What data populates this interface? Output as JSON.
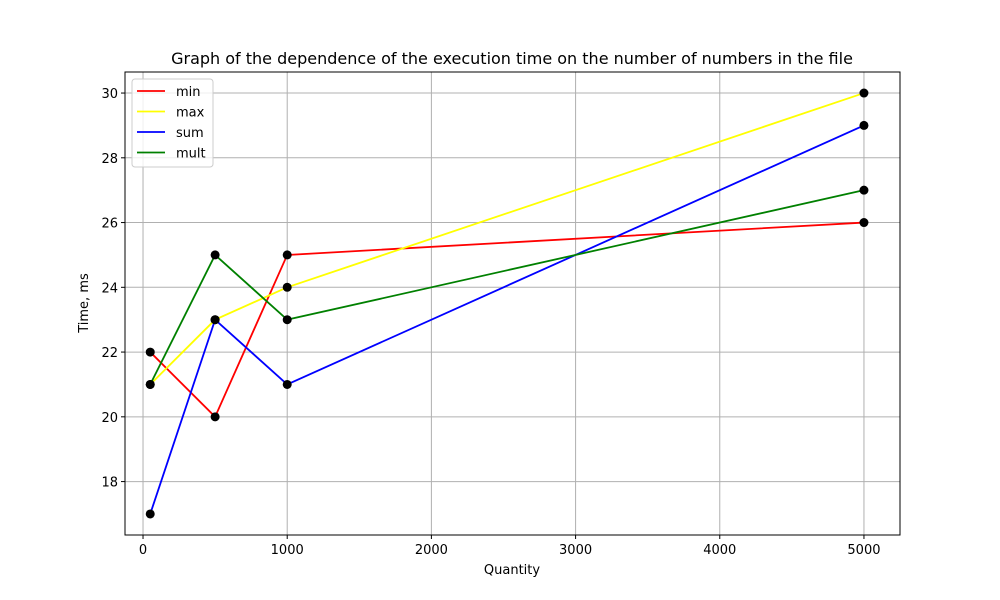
{
  "chart_data": {
    "type": "line",
    "title": "Graph of the dependence of the execution time on the number of numbers in the file",
    "xlabel": "Quantity",
    "ylabel": "Time, ms",
    "x": [
      50,
      500,
      1000,
      5000
    ],
    "xlim": [
      -125,
      5250
    ],
    "ylim": [
      16.35,
      30.65
    ],
    "xticks": [
      0,
      1000,
      2000,
      3000,
      4000,
      5000
    ],
    "yticks": [
      18,
      20,
      22,
      24,
      26,
      28,
      30
    ],
    "grid": true,
    "legend_position": "top-left",
    "marker_color": "#000000",
    "series": [
      {
        "name": "min",
        "color": "#ff0000",
        "values": [
          22,
          20,
          25,
          26
        ]
      },
      {
        "name": "max",
        "color": "#ffff00",
        "values": [
          21,
          23,
          24,
          30
        ]
      },
      {
        "name": "sum",
        "color": "#0000ff",
        "values": [
          17,
          23,
          21,
          29
        ]
      },
      {
        "name": "mult",
        "color": "#008000",
        "values": [
          21,
          25,
          23,
          27
        ]
      }
    ]
  }
}
